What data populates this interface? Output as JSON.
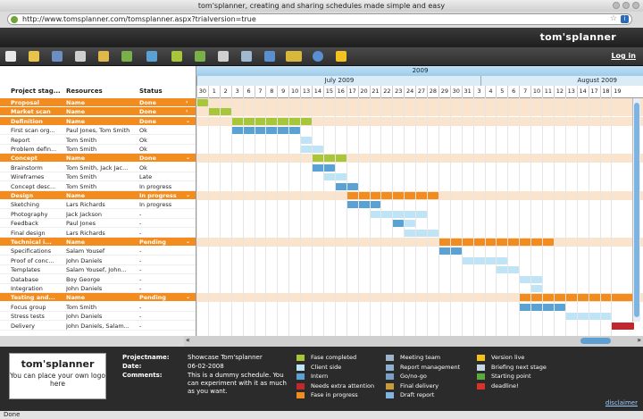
{
  "window": {
    "title": "tom'splanner, creating and sharing schedules made simple and easy",
    "url": "http://www.tomsplanner.com/tomsplanner.aspx?trialversion=true"
  },
  "header": {
    "logo": "tom'splanner",
    "login": "Log in"
  },
  "columns": {
    "project": "Project stag...",
    "resources": "Resources",
    "status": "Status"
  },
  "timeline": {
    "year": "2009",
    "months": [
      "July 2009",
      "August 2009"
    ],
    "days": [
      "30",
      "1",
      "2",
      "3",
      "6",
      "7",
      "8",
      "9",
      "10",
      "13",
      "14",
      "15",
      "16",
      "17",
      "20",
      "21",
      "22",
      "23",
      "24",
      "27",
      "28",
      "29",
      "30",
      "31",
      "3",
      "4",
      "5",
      "6",
      "7",
      "10",
      "11",
      "12",
      "13",
      "14",
      "17",
      "18",
      "19"
    ]
  },
  "rows": [
    {
      "group": true,
      "name": "Proposal",
      "res": "Name",
      "status": "Done",
      "arrow": "›"
    },
    {
      "group": true,
      "name": "Market scan",
      "res": "Name",
      "status": "Done",
      "arrow": "›"
    },
    {
      "group": true,
      "name": "Definition",
      "res": "Name",
      "status": "Done",
      "arrow": "⌄"
    },
    {
      "group": false,
      "name": "First scan org...",
      "res": "Paul Jones, Tom Smith",
      "status": "Ok"
    },
    {
      "group": false,
      "name": "Report",
      "res": "Tom Smith",
      "status": "Ok"
    },
    {
      "group": false,
      "name": "Problem defin...",
      "res": "Tom Smith",
      "status": "Ok"
    },
    {
      "group": true,
      "name": "Concept",
      "res": "Name",
      "status": "Done",
      "arrow": "⌄"
    },
    {
      "group": false,
      "name": "Brainstorm",
      "res": "Tom Smith, Jack Jac...",
      "status": "Ok"
    },
    {
      "group": false,
      "name": "Wireframes",
      "res": "Tom Smith",
      "status": "Late"
    },
    {
      "group": false,
      "name": "Concept desc...",
      "res": "Tom Smith",
      "status": "In progress"
    },
    {
      "group": true,
      "name": "Design",
      "res": "Name",
      "status": "In progress",
      "arrow": "⌄"
    },
    {
      "group": false,
      "name": "Sketching",
      "res": "Lars Richards",
      "status": "In progress"
    },
    {
      "group": false,
      "name": "Photography",
      "res": "Jack Jackson",
      "status": "-"
    },
    {
      "group": false,
      "name": "Feedback",
      "res": "Paul Jones",
      "status": "-"
    },
    {
      "group": false,
      "name": "Final design",
      "res": "Lars Richards",
      "status": "-"
    },
    {
      "group": true,
      "name": "Technical i...",
      "res": "Name",
      "status": "Pending",
      "arrow": "⌄"
    },
    {
      "group": false,
      "name": "Specifications",
      "res": "Salam Yousef",
      "status": "-"
    },
    {
      "group": false,
      "name": "Proof of conc...",
      "res": "John Daniels",
      "status": "-"
    },
    {
      "group": false,
      "name": "Templates",
      "res": "Salam Yousef, John...",
      "status": "-"
    },
    {
      "group": false,
      "name": "Database",
      "res": "Boy George",
      "status": "-"
    },
    {
      "group": false,
      "name": "Integration",
      "res": "John Daniels",
      "status": "-"
    },
    {
      "group": true,
      "name": "Testing and...",
      "res": "Name",
      "status": "Pending",
      "arrow": "⌄"
    },
    {
      "group": false,
      "name": "Focus group",
      "res": "Tom Smith",
      "status": "-"
    },
    {
      "group": false,
      "name": "Stress tests",
      "res": "John Daniels",
      "status": "-"
    },
    {
      "group": false,
      "name": "Delivery",
      "res": "John Daniels, Salam...",
      "status": "-"
    }
  ],
  "footer": {
    "logo": "tom'splanner",
    "logo_text": "You can place your own logo here",
    "project_label": "Projectname:",
    "project_value": "Showcase Tom'splanner",
    "date_label": "Date:",
    "date_value": "06-02-2008",
    "comments_label": "Comments:",
    "comments_value": "This is a dummy schedule. You can experiment with it as much as you want.",
    "disclaimer": "disclaimer"
  },
  "legend": [
    {
      "label": "Fase completed",
      "color": "#a8c63a"
    },
    {
      "label": "Client side",
      "color": "#bfe4f6"
    },
    {
      "label": "Intern",
      "color": "#5aa2d4"
    },
    {
      "label": "Needs extra attention",
      "color": "#c1272d"
    },
    {
      "label": "Fase in progress",
      "color": "#f28c1e"
    },
    {
      "label": "Meeting team",
      "color": "#9fb4c8"
    },
    {
      "label": "Report management",
      "color": "#8fb0d0"
    },
    {
      "label": "Go/no-go",
      "color": "#7aa0c8"
    },
    {
      "label": "Final delivery",
      "color": "#c89a3a"
    },
    {
      "label": "Draft report",
      "color": "#7fb3e0"
    },
    {
      "label": "Version live",
      "color": "#f2c21e"
    },
    {
      "label": "Briefing next stage",
      "color": "#c9d6e3"
    },
    {
      "label": "Starting point",
      "color": "#5bab3c"
    },
    {
      "label": "deadline!",
      "color": "#d9322b"
    }
  ],
  "status": {
    "text": "Done"
  }
}
